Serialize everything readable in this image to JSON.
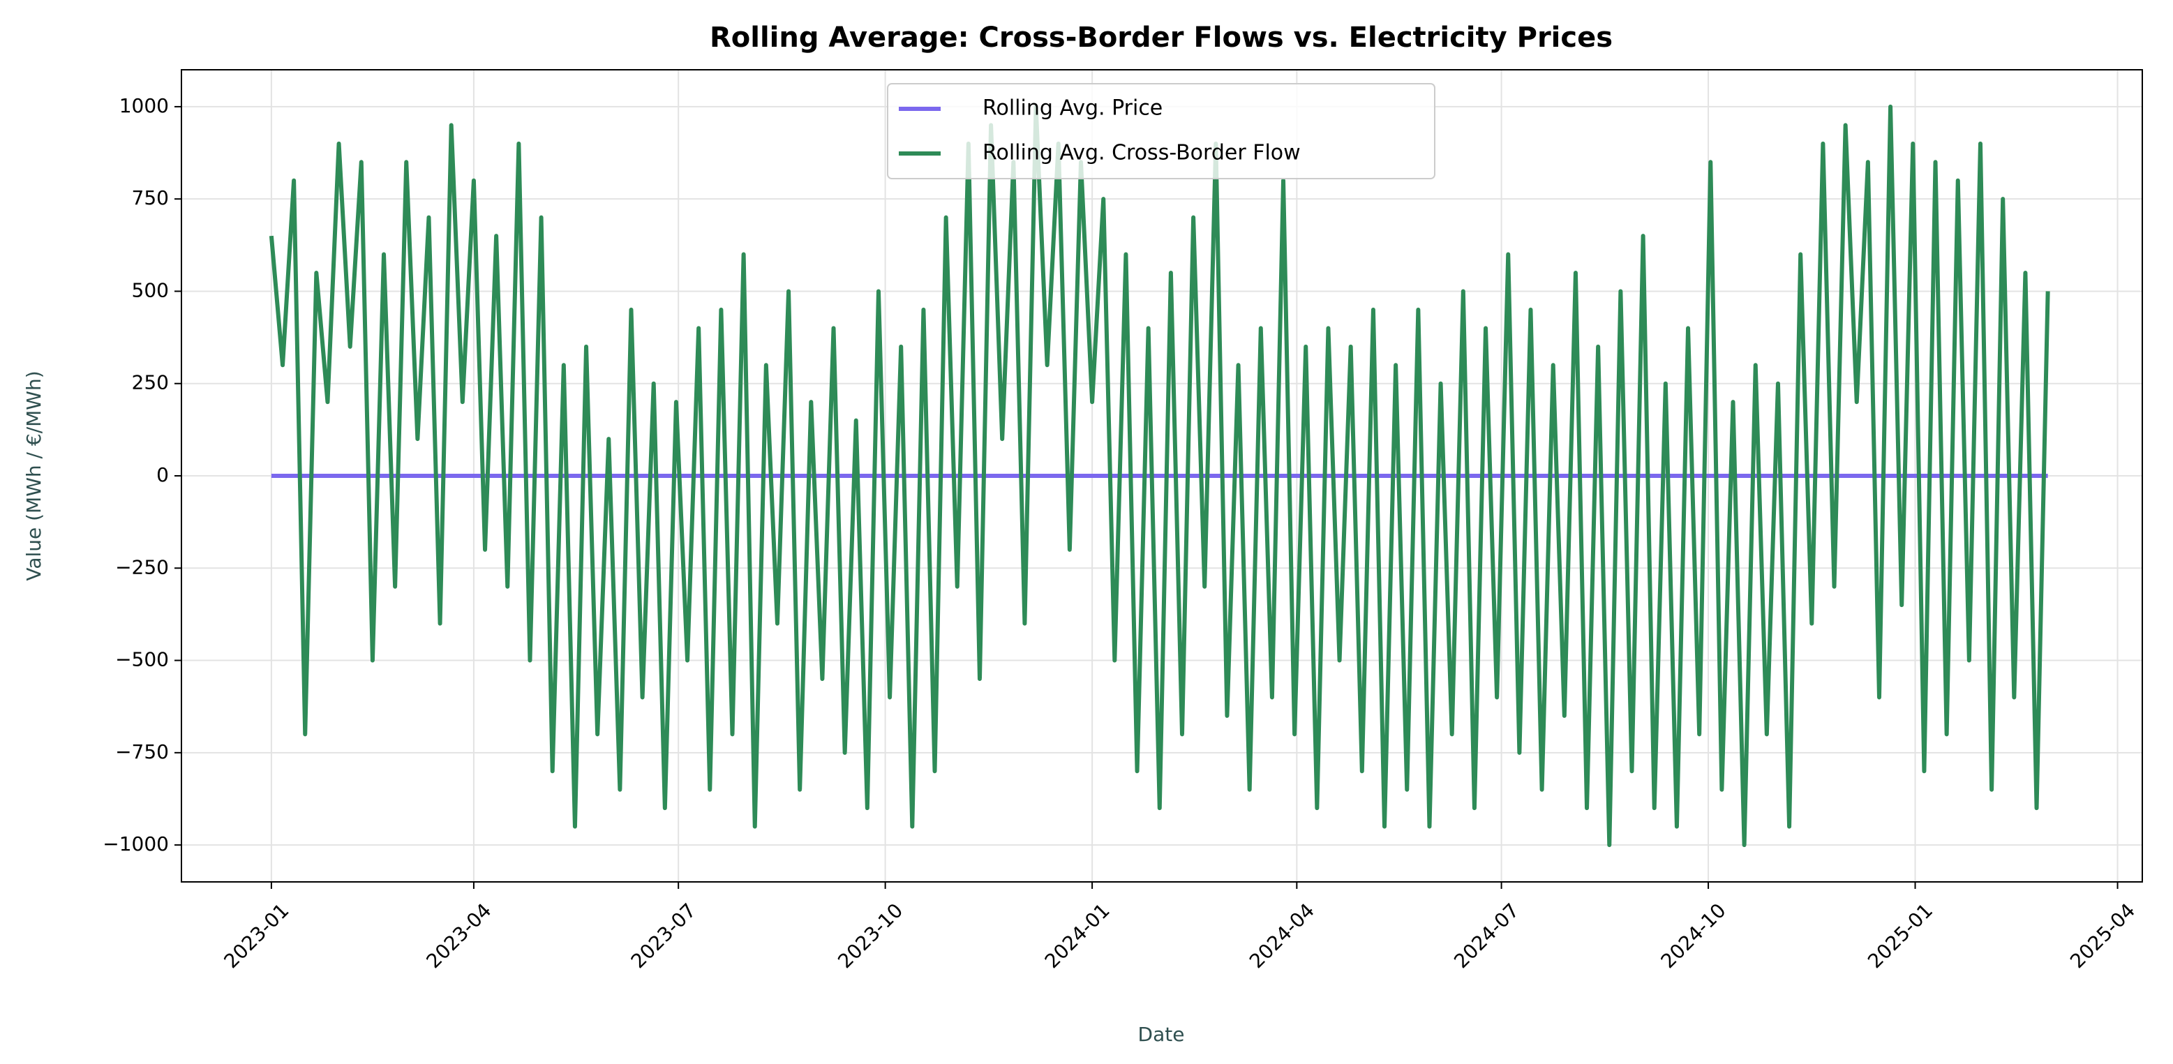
{
  "chart_data": {
    "type": "line",
    "title": "Rolling Average: Cross-Border Flows vs. Electricity Prices",
    "x_label": "Date",
    "y_label": "Value (MWh / €/MWh)",
    "x": [
      0,
      5,
      10,
      15,
      20,
      25,
      30,
      35,
      40,
      45,
      50,
      55,
      60,
      65,
      70,
      75,
      80,
      85,
      90,
      95,
      100,
      105,
      110,
      115,
      120,
      125,
      130,
      135,
      140,
      145,
      150,
      155,
      160,
      165,
      170,
      175,
      180,
      185,
      190,
      195,
      200,
      205,
      210,
      215,
      220,
      225,
      230,
      235,
      240,
      245,
      250,
      255,
      260,
      265,
      270,
      275,
      280,
      285,
      290,
      295,
      300,
      305,
      310,
      315,
      320,
      325,
      330,
      335,
      340,
      345,
      350,
      355,
      360,
      365,
      370,
      375,
      380,
      385,
      390,
      395,
      400,
      405,
      410,
      415,
      420,
      425,
      430,
      435,
      440,
      445,
      450,
      455,
      460,
      465,
      470,
      475,
      480,
      485,
      490,
      495,
      500,
      505,
      510,
      515,
      520,
      525,
      530,
      535,
      540,
      545,
      550,
      555,
      560,
      565,
      570,
      575,
      580,
      585,
      590,
      595,
      600,
      605,
      610,
      615,
      620,
      625,
      630,
      635,
      640,
      645,
      650,
      655,
      660,
      665,
      670,
      675,
      680,
      685,
      690,
      695,
      700,
      705,
      710,
      715,
      720,
      725,
      730,
      735,
      740,
      745,
      750,
      755,
      760,
      765,
      770,
      775,
      780,
      785,
      790
    ],
    "series": [
      {
        "name": "Rolling Avg. Price",
        "color": "#7b68ee",
        "values": [
          0,
          0,
          0,
          0,
          0,
          0,
          0,
          0,
          0,
          0,
          0,
          0,
          0,
          0,
          0,
          0,
          0,
          0,
          0,
          0,
          0,
          0,
          0,
          0,
          0,
          0,
          0,
          0,
          0,
          0,
          0,
          0,
          0,
          0,
          0,
          0,
          0,
          0,
          0,
          0,
          0,
          0,
          0,
          0,
          0,
          0,
          0,
          0,
          0,
          0,
          0,
          0,
          0,
          0,
          0,
          0,
          0,
          0,
          0,
          0,
          0,
          0,
          0,
          0,
          0,
          0,
          0,
          0,
          0,
          0,
          0,
          0,
          0,
          0,
          0,
          0,
          0,
          0,
          0,
          0,
          0,
          0,
          0,
          0,
          0,
          0,
          0,
          0,
          0,
          0,
          0,
          0,
          0,
          0,
          0,
          0,
          0,
          0,
          0,
          0,
          0,
          0,
          0,
          0,
          0,
          0,
          0,
          0,
          0,
          0,
          0,
          0,
          0,
          0,
          0,
          0,
          0,
          0,
          0,
          0,
          0,
          0,
          0,
          0,
          0,
          0,
          0,
          0,
          0,
          0,
          0,
          0,
          0,
          0,
          0,
          0,
          0,
          0,
          0,
          0,
          0,
          0,
          0,
          0,
          0,
          0,
          0,
          0,
          0,
          0,
          0,
          0,
          0,
          0,
          0,
          0,
          0,
          0,
          0
        ]
      },
      {
        "name": "Rolling Avg. Cross-Border Flow",
        "color": "#2e8b57",
        "values": [
          650,
          300,
          800,
          -700,
          550,
          200,
          900,
          350,
          850,
          -500,
          600,
          -300,
          850,
          100,
          700,
          -400,
          950,
          200,
          800,
          -200,
          650,
          -300,
          900,
          -500,
          700,
          -800,
          300,
          -950,
          350,
          -700,
          100,
          -850,
          450,
          -600,
          250,
          -900,
          200,
          -500,
          400,
          -850,
          450,
          -700,
          600,
          -950,
          300,
          -400,
          500,
          -850,
          200,
          -550,
          400,
          -750,
          150,
          -900,
          500,
          -600,
          350,
          -950,
          450,
          -800,
          700,
          -300,
          900,
          -550,
          950,
          100,
          850,
          -400,
          1000,
          300,
          900,
          -200,
          850,
          200,
          750,
          -500,
          600,
          -800,
          400,
          -900,
          550,
          -700,
          700,
          -300,
          900,
          -650,
          300,
          -850,
          400,
          -600,
          800,
          -700,
          350,
          -900,
          400,
          -500,
          350,
          -800,
          450,
          -950,
          300,
          -850,
          450,
          -950,
          250,
          -700,
          500,
          -900,
          400,
          -600,
          600,
          -750,
          450,
          -850,
          300,
          -650,
          550,
          -900,
          350,
          -1000,
          500,
          -800,
          650,
          -900,
          250,
          -950,
          400,
          -700,
          850,
          -850,
          200,
          -1000,
          300,
          -700,
          250,
          -950,
          600,
          -400,
          900,
          -300,
          950,
          200,
          850,
          -600,
          1000,
          -350,
          900,
          -800,
          850,
          -700,
          800,
          -500,
          900,
          -850,
          750,
          -600,
          550,
          -900,
          500
        ]
      }
    ],
    "xlim": [
      -40,
      832
    ],
    "xticks": [
      {
        "value": 0,
        "label": "2023-01"
      },
      {
        "value": 90,
        "label": "2023-04"
      },
      {
        "value": 181,
        "label": "2023-07"
      },
      {
        "value": 273,
        "label": "2023-10"
      },
      {
        "value": 365,
        "label": "2024-01"
      },
      {
        "value": 456,
        "label": "2024-04"
      },
      {
        "value": 547,
        "label": "2024-07"
      },
      {
        "value": 639,
        "label": "2024-10"
      },
      {
        "value": 731,
        "label": "2025-01"
      },
      {
        "value": 821,
        "label": "2025-04"
      }
    ],
    "ylim": [
      -1100,
      1100
    ],
    "yticks": [
      {
        "value": -1000,
        "label": "−1000"
      },
      {
        "value": -750,
        "label": "−750"
      },
      {
        "value": -500,
        "label": "−500"
      },
      {
        "value": -250,
        "label": "−250"
      },
      0,
      250,
      500,
      750,
      1000
    ],
    "grid": true,
    "legend": "upper center"
  }
}
